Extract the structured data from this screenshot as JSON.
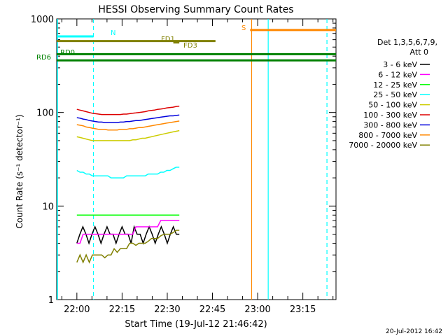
{
  "chart_data": {
    "type": "line",
    "title": "HESSI Observing Summary Count Rates",
    "xlabel": "Start Time (19-Jul-12 21:46:42)",
    "ylabel": "Count Rate (s⁻¹ detector⁻¹)",
    "y_scale": "log",
    "ylim": [
      1,
      1000
    ],
    "xlim_minutes": [
      -6.7,
      86.0
    ],
    "x_tick_labels": [
      "22:00",
      "22:15",
      "22:30",
      "22:45",
      "23:00",
      "23:15"
    ],
    "x_tick_minutes": [
      0,
      15,
      30,
      45,
      60,
      75
    ],
    "y_tick_labels": [
      "1",
      "10",
      "100",
      "1000"
    ],
    "y_tick_values": [
      1,
      10,
      100,
      1000
    ],
    "grid": false,
    "legend_placement": "right",
    "legend_header": [
      "Det 1,3,5,6,7,9,",
      "Att 0"
    ],
    "series": [
      {
        "name": "3 - 6 keV",
        "color": "#000000",
        "segments": [
          {
            "start": 0,
            "end": 17,
            "values": [
              4,
              5,
              6,
              5,
              4,
              5,
              6,
              5,
              4,
              5,
              6,
              5,
              5,
              4,
              5,
              6,
              5,
              5
            ]
          },
          {
            "start": 17,
            "end": 34,
            "values": [
              5,
              4,
              6,
              5,
              5,
              4,
              5,
              6,
              5,
              4,
              5,
              6,
              5,
              4,
              5,
              6,
              5,
              5
            ]
          }
        ]
      },
      {
        "name": "6 - 12 keV",
        "color": "#ff00ff",
        "segments": [
          {
            "start": 0,
            "end": 34,
            "values": [
              4,
              4,
              5,
              5,
              5,
              5,
              5,
              5,
              5,
              5,
              5,
              5,
              5,
              5,
              5,
              5,
              5,
              5,
              5,
              6,
              6,
              6,
              6,
              6,
              6,
              6,
              6,
              7,
              7,
              7,
              7,
              7,
              7,
              7
            ]
          }
        ]
      },
      {
        "name": "12 - 25 keV",
        "color": "#00ff00",
        "segments": [
          {
            "start": 0,
            "end": 34,
            "values": [
              8,
              8,
              8,
              8,
              8,
              8,
              8,
              8,
              8,
              8,
              8,
              8,
              8,
              8,
              8,
              8,
              8,
              8,
              8,
              8,
              8,
              8,
              8,
              8,
              8,
              8,
              8,
              8,
              8,
              8,
              8,
              8,
              8,
              8
            ]
          }
        ]
      },
      {
        "name": "25 - 50 keV",
        "color": "#00ffff",
        "segments": [
          {
            "start": 0,
            "end": 34,
            "values": [
              24,
              23,
              23,
              22,
              22,
              21,
              21,
              21,
              21,
              21,
              21,
              20,
              20,
              20,
              20,
              20,
              21,
              21,
              21,
              21,
              21,
              21,
              21,
              22,
              22,
              22,
              22,
              23,
              23,
              24,
              24,
              25,
              26,
              26
            ]
          }
        ]
      },
      {
        "name": "50 - 100 keV",
        "color": "#cccc00",
        "segments": [
          {
            "start": 0,
            "end": 34,
            "values": [
              55,
              54,
              53,
              52,
              51,
              50,
              50,
              50,
              50,
              50,
              50,
              50,
              50,
              50,
              50,
              50,
              50,
              50,
              51,
              51,
              52,
              53,
              53,
              54,
              55,
              56,
              57,
              58,
              59,
              60,
              61,
              62,
              63,
              64
            ]
          }
        ]
      },
      {
        "name": "100 - 300 keV",
        "color": "#dd0000",
        "segments": [
          {
            "start": 0,
            "end": 34,
            "values": [
              108,
              106,
              104,
              102,
              100,
              98,
              97,
              96,
              95,
              95,
              95,
              95,
              95,
              95,
              95,
              96,
              96,
              97,
              98,
              99,
              100,
              101,
              102,
              104,
              105,
              106,
              108,
              109,
              110,
              112,
              113,
              114,
              116,
              117
            ]
          }
        ]
      },
      {
        "name": "300 - 800 keV",
        "color": "#0000dd",
        "segments": [
          {
            "start": 0,
            "end": 34,
            "values": [
              88,
              87,
              85,
              84,
              82,
              81,
              80,
              79,
              79,
              78,
              78,
              78,
              78,
              78,
              79,
              79,
              80,
              80,
              81,
              82,
              82,
              83,
              84,
              85,
              86,
              87,
              88,
              89,
              90,
              91,
              92,
              92,
              93,
              94
            ]
          }
        ]
      },
      {
        "name": "800 - 7000 keV",
        "color": "#ff8800",
        "segments": [
          {
            "start": 0,
            "end": 34,
            "values": [
              74,
              73,
              72,
              70,
              69,
              68,
              67,
              66,
              66,
              66,
              65,
              65,
              65,
              65,
              66,
              66,
              66,
              67,
              67,
              68,
              69,
              69,
              70,
              71,
              72,
              73,
              74,
              75,
              76,
              77,
              78,
              79,
              80,
              81
            ]
          }
        ]
      },
      {
        "name": "7000 - 20000 keV",
        "color": "#808000",
        "segments": [
          {
            "start": 0,
            "end": 34,
            "values": [
              2.5,
              3,
              2.5,
              3,
              2.5,
              3,
              3,
              3,
              3,
              2.8,
              3,
              3,
              3.5,
              3.2,
              3.5,
              3.5,
              3.5,
              4,
              4,
              3.8,
              4,
              4,
              4,
              4.2,
              4.5,
              4.5,
              4.5,
              4.8,
              5,
              5,
              5,
              5.2,
              5.5,
              5.5
            ]
          }
        ]
      }
    ],
    "flag_annotations": [
      {
        "label": "N",
        "color": "#00ffff",
        "y": 650,
        "spans": [
          [
            -6.7,
            5.5
          ]
        ]
      },
      {
        "label": "FD1",
        "color": "#808000",
        "y": 580,
        "spans": [
          [
            -6.7,
            46
          ]
        ]
      },
      {
        "label": "FD3",
        "color": "#808000",
        "y": 560,
        "spans": [
          [
            32,
            34
          ]
        ]
      },
      {
        "label": "S",
        "color": "#ff8800",
        "y": 760,
        "spans": [
          [
            57.5,
            86
          ]
        ]
      },
      {
        "label": "RD0",
        "color": "#008000",
        "y": 420,
        "spans": [
          [
            -6.7,
            86
          ]
        ]
      },
      {
        "label": "RD6",
        "color": "#008000",
        "y": 360,
        "spans": [
          [
            -6.7,
            86
          ]
        ]
      }
    ],
    "vertical_markers": [
      {
        "minute": 5.5,
        "color": "#00ffff",
        "style": "dashed"
      },
      {
        "minute": 58.0,
        "color": "#ff8800",
        "style": "solid"
      },
      {
        "minute": 63.5,
        "color": "#00ffff",
        "style": "solid"
      },
      {
        "minute": 83.0,
        "color": "#00ffff",
        "style": "dashed"
      }
    ],
    "timestamp": "20-Jul-2012 16:42"
  }
}
